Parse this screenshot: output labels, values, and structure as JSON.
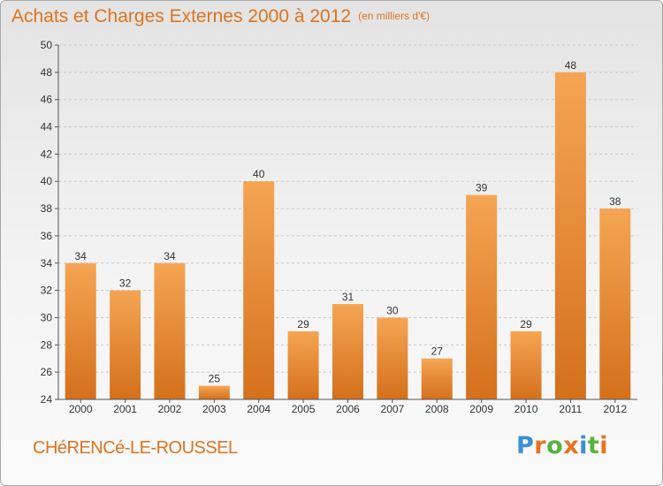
{
  "header": {
    "title": "Achats et Charges Externes 2000 à 2012",
    "unit": "(en milliers d'€)"
  },
  "footer": {
    "city": "CHéRENCé-LE-ROUSSEL",
    "brand": "Proxiti"
  },
  "colors": {
    "title": "#e0731f",
    "bar_top": "#f5a553",
    "bar_bottom": "#d4701c",
    "grid": "#c8c8c8",
    "brand_letters": [
      "#3a8fd6",
      "#e8731e",
      "#57b23e",
      "#e8731e",
      "#3a8fd6",
      "#57b23e",
      "#e8731e"
    ]
  },
  "chart_data": {
    "type": "bar",
    "title": "Achats et Charges Externes 2000 à 2012",
    "subtitle": "(en milliers d'€)",
    "xlabel": "",
    "ylabel": "",
    "categories": [
      "2000",
      "2001",
      "2002",
      "2003",
      "2004",
      "2005",
      "2006",
      "2007",
      "2008",
      "2009",
      "2010",
      "2011",
      "2012"
    ],
    "values": [
      34,
      32,
      34,
      25,
      40,
      29,
      31,
      30,
      27,
      39,
      29,
      48,
      38
    ],
    "ylim": [
      24,
      50
    ],
    "yticks": [
      24,
      26,
      28,
      30,
      32,
      34,
      36,
      38,
      40,
      42,
      44,
      46,
      48,
      50
    ],
    "grid": true,
    "data_labels": true
  }
}
